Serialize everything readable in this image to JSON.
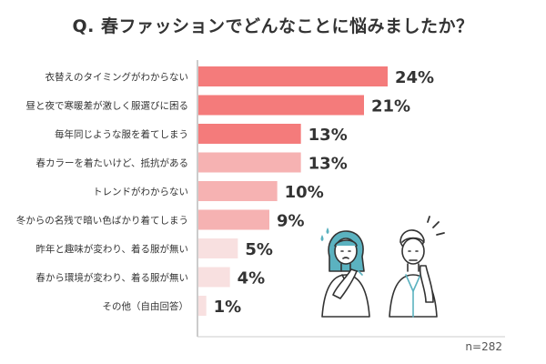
{
  "title": "Q. 春ファッションでどんなことに悩みましたか？",
  "sample_note": "n=282",
  "colors": {
    "dark": "#f47b7b",
    "medium": "#f6b2b2",
    "light": "#f8e0e0",
    "text": "#333333",
    "axis": "#999999"
  },
  "chart_data": {
    "type": "bar",
    "orientation": "horizontal",
    "title": "Q. 春ファッションでどんなことに悩みましたか？",
    "categories": [
      "衣替えのタイミングがわからない",
      "昼と夜で寒暖差が激しく服選びに困る",
      "毎年同じような服を着てしまう",
      "春カラーを着たいけど、抵抗がある",
      "トレンドがわからない",
      "冬からの名残で暗い色ばかり着てしまう",
      "昨年と趣味が変わり、着る服が無い",
      "春から環境が変わり、着る服が無い",
      "その他（自由回答）"
    ],
    "values": [
      24,
      21,
      13,
      13,
      10,
      9,
      5,
      4,
      1
    ],
    "value_labels": [
      "24%",
      "21%",
      "13%",
      "13%",
      "10%",
      "9%",
      "5%",
      "4%",
      "1%"
    ],
    "tiers": [
      "dark",
      "dark",
      "dark",
      "medium",
      "medium",
      "medium",
      "light",
      "light",
      "light"
    ],
    "unit": "%",
    "xlim": [
      0,
      40
    ],
    "grid": false,
    "legend": "none"
  }
}
